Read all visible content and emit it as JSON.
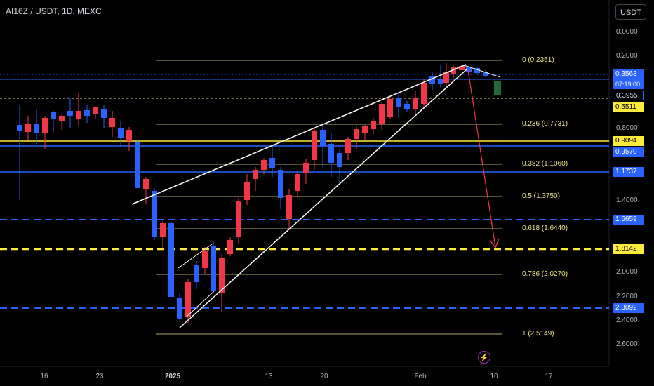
{
  "header": {
    "symbol_title": "AI16Z / USDT, 1D, MEXC",
    "currency_button": "USDT"
  },
  "price_scale": {
    "labels": [
      "0.0000",
      "0.2000",
      "0.8000",
      "1.4000",
      "2.0000",
      "2.2000",
      "2.4000",
      "2.6000"
    ]
  },
  "time_axis": {
    "labels": [
      "16",
      "23",
      "2025",
      "13",
      "20",
      "Feb",
      "10",
      "17"
    ]
  },
  "price_tags": {
    "current_price": "0.3563",
    "countdown": "07:19:00",
    "tag_1": "0.3955",
    "tag_2": "0.5511",
    "tag_3": "0.9094",
    "tag_4": "0.9570",
    "tag_5": "1.1737",
    "tag_6": "1.5659",
    "tag_7": "1.8142",
    "tag_8": "2.3092"
  },
  "fibonacci": {
    "levels": [
      "0 (0.2351)",
      "0.236 (0.7731)",
      "0.382 (1.1060)",
      "0.5 (1.3750)",
      "0.618 (1.6440)",
      "0.786 (2.0270)",
      "1 (2.5149)"
    ]
  },
  "colors": {
    "up_candle": "#2962ff",
    "down_candle": "#f23645",
    "fib_line": "#e9e57d",
    "projection_arrow": "#f23645",
    "level_blue": "#2962ff",
    "level_yellow": "#ffeb3b",
    "background": "#000000"
  },
  "icons": {
    "lightning": "lightning-icon"
  }
}
